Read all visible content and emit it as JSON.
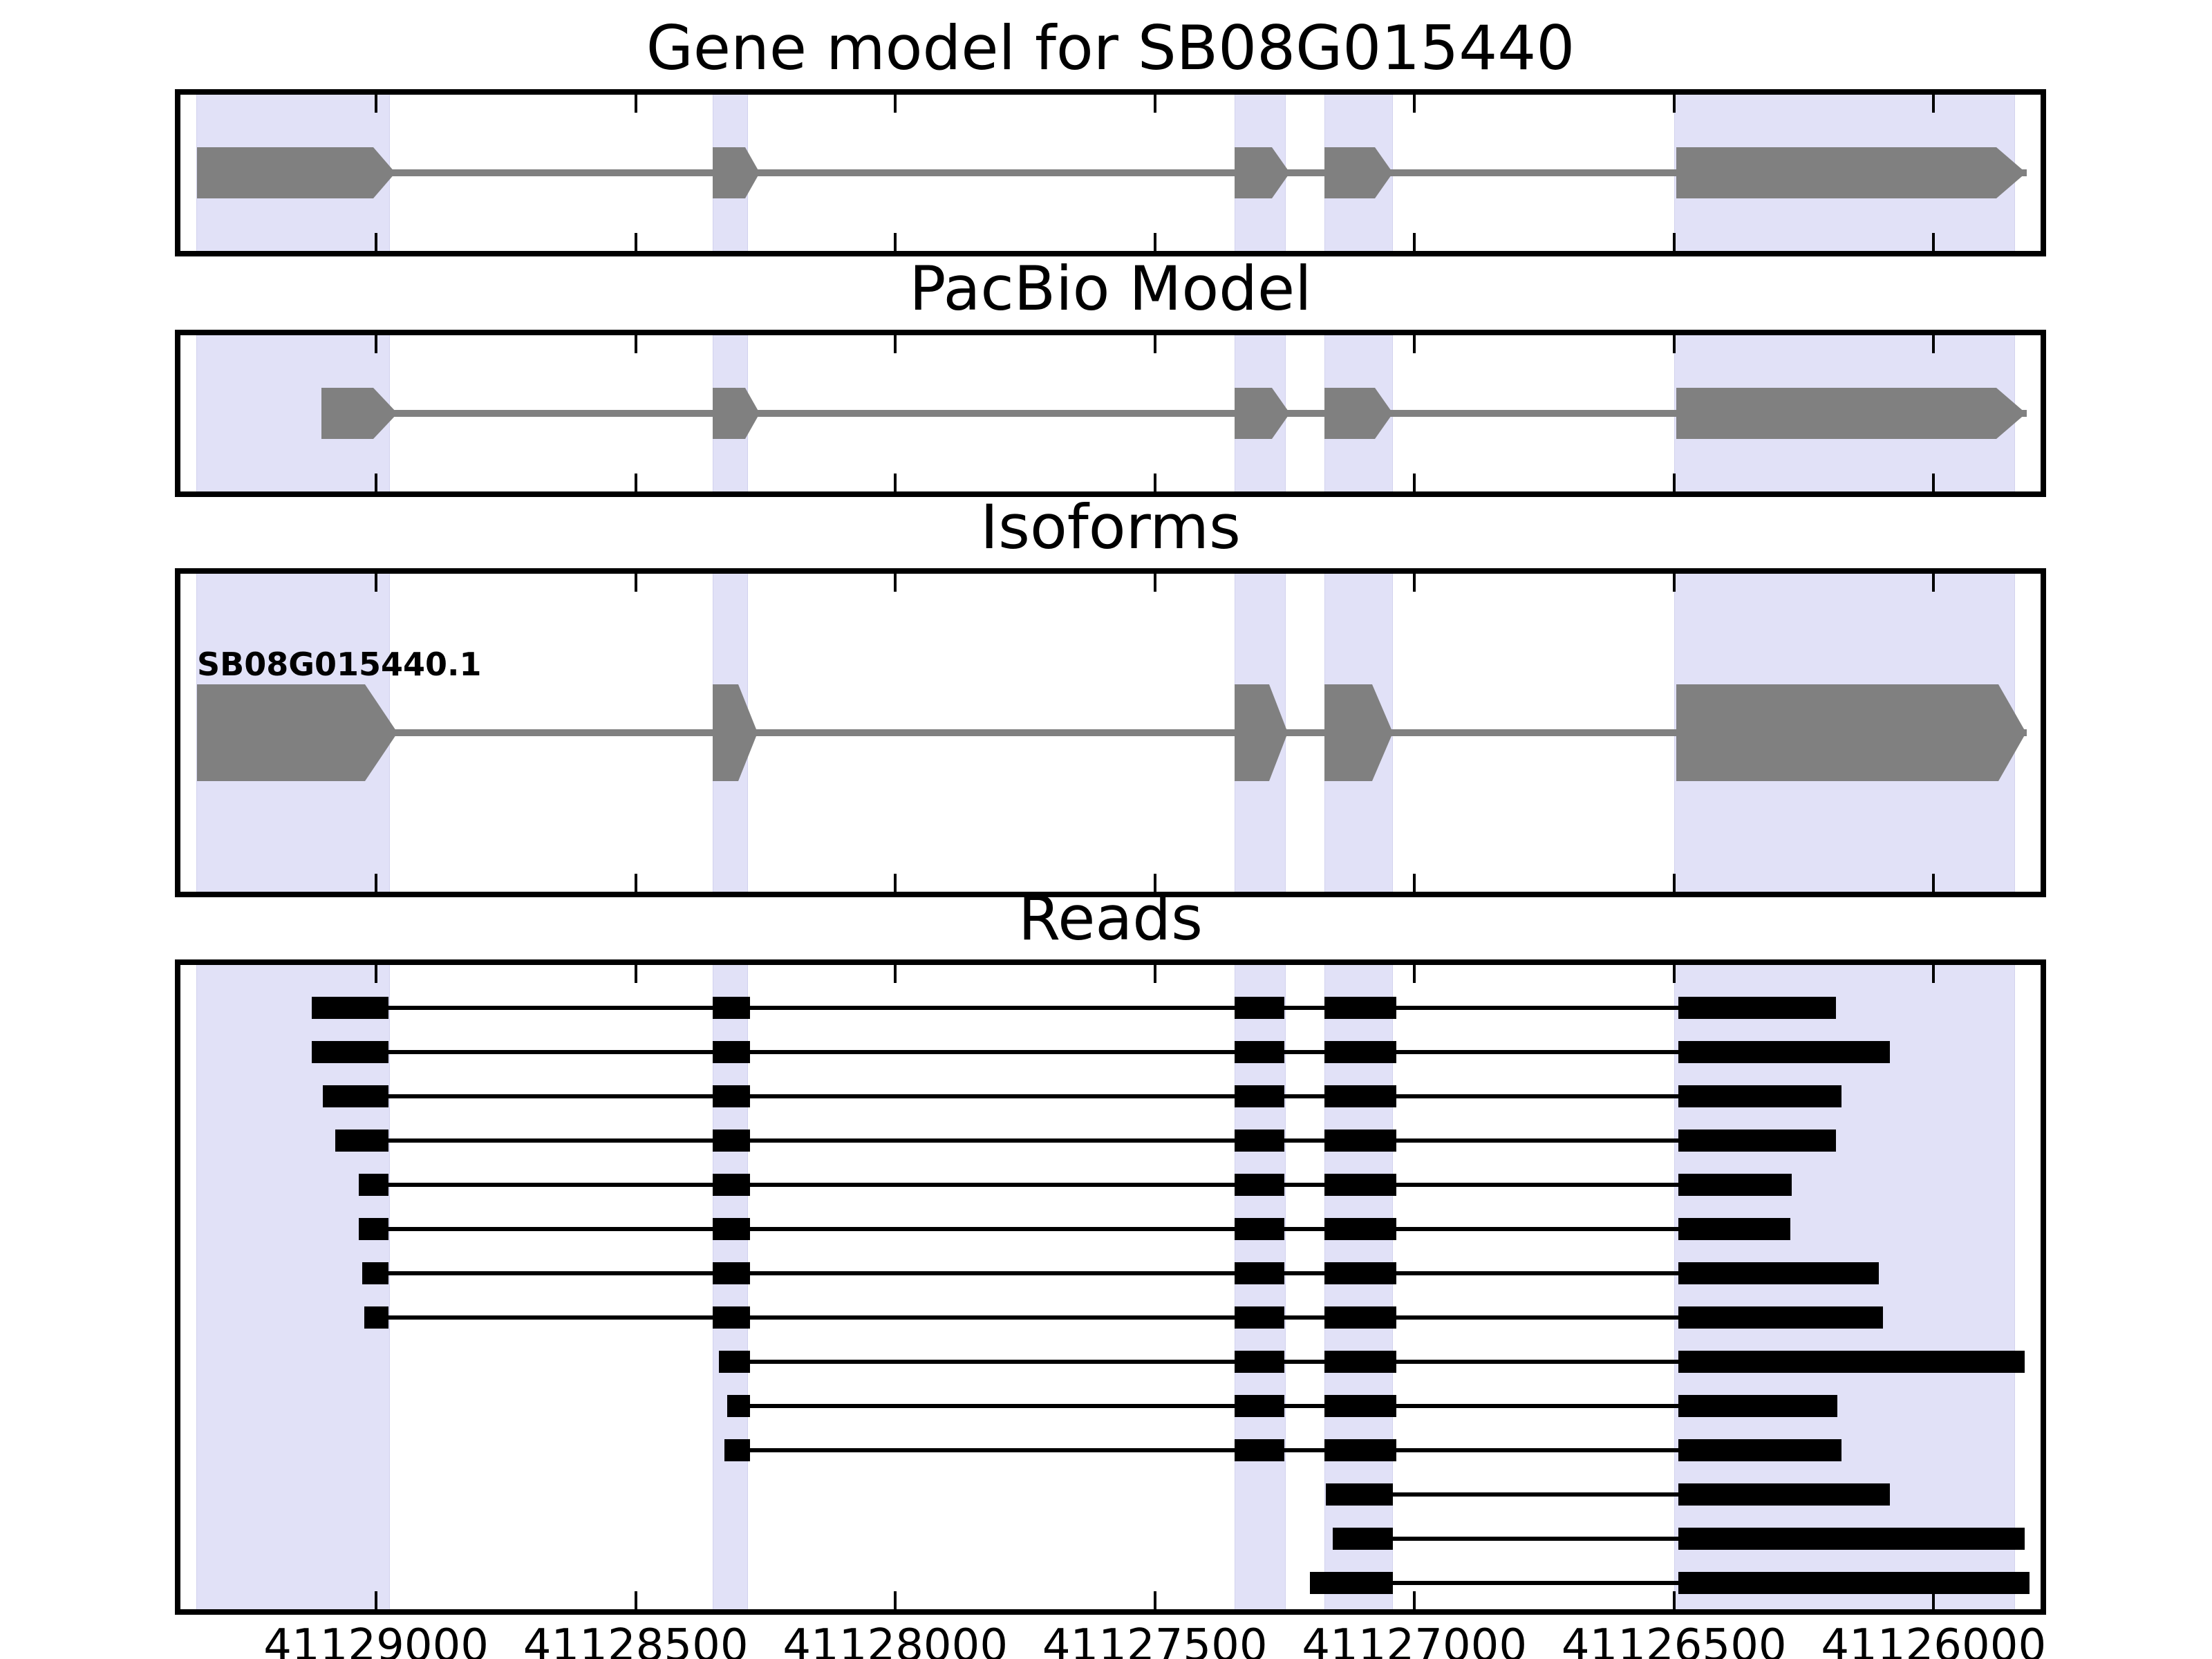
{
  "figure": {
    "background": "#ffffff"
  },
  "colors": {
    "highlight_band": "#e1e1f7",
    "gene_fill": "#808080",
    "read_fill": "#000000",
    "frame": "#000000"
  },
  "chart_data": {
    "type": "gene-model-tracks",
    "orientation": "reversed-x-axis",
    "axis": {
      "xlim_bp": [
        41129377,
        41125794
      ],
      "tick_bps": [
        41129000,
        41128500,
        41128000,
        41127500,
        41127000,
        41126500,
        41126000
      ],
      "tick_labels": [
        "41129000",
        "41128500",
        "41128000",
        "41127500",
        "41127000",
        "41126500",
        "41126000"
      ]
    },
    "highlight_regions_bp": [
      {
        "from": 41129346,
        "to": 41128976
      },
      {
        "from": 41128352,
        "to": 41128287
      },
      {
        "from": 41127347,
        "to": 41127251
      },
      {
        "from": 41127174,
        "to": 41127044
      },
      {
        "from": 41126500,
        "to": 41125846
      }
    ],
    "tracks": [
      {
        "name": "gene_model",
        "title": "Gene model for SB08G015440",
        "exons": [
          {
            "from": 41129345,
            "to": 41129006,
            "tip": 41128963
          },
          {
            "from": 41128352,
            "to": 41128289,
            "tip": 41128260
          },
          {
            "from": 41127347,
            "to": 41127275,
            "tip": 41127240
          },
          {
            "from": 41127173,
            "to": 41127076,
            "tip": 41127041
          },
          {
            "from": 41126496,
            "to": 41125879,
            "tip": 41125821
          }
        ]
      },
      {
        "name": "pacbio_model",
        "title": "PacBio Model",
        "exons": [
          {
            "from": 41129105,
            "to": 41129006,
            "tip": 41128959
          },
          {
            "from": 41128352,
            "to": 41128289,
            "tip": 41128260
          },
          {
            "from": 41127347,
            "to": 41127275,
            "tip": 41127240
          },
          {
            "from": 41127173,
            "to": 41127076,
            "tip": 41127041
          },
          {
            "from": 41126496,
            "to": 41125879,
            "tip": 41125821
          }
        ]
      },
      {
        "name": "isoforms",
        "title": "Isoforms",
        "isoform_label": "SB08G015440.1",
        "exons": [
          {
            "from": 41129345,
            "to": 41129022,
            "tip": 41128959
          },
          {
            "from": 41128352,
            "to": 41128302,
            "tip": 41128264
          },
          {
            "from": 41127347,
            "to": 41127280,
            "tip": 41127243
          },
          {
            "from": 41127173,
            "to": 41127081,
            "tip": 41127041
          },
          {
            "from": 41126496,
            "to": 41125875,
            "tip": 41125821
          }
        ]
      },
      {
        "name": "reads",
        "title": "Reads",
        "reads": [
          {
            "blocks": [
              [
                41129124,
                41128976
              ],
              [
                41128352,
                41128280
              ],
              [
                41127347,
                41127251
              ],
              [
                41127173,
                41127035
              ],
              [
                41126492,
                41126188
              ]
            ]
          },
          {
            "blocks": [
              [
                41129124,
                41128976
              ],
              [
                41128352,
                41128280
              ],
              [
                41127347,
                41127251
              ],
              [
                41127173,
                41127035
              ],
              [
                41126492,
                41126084
              ]
            ]
          },
          {
            "blocks": [
              [
                41129103,
                41128976
              ],
              [
                41128352,
                41128280
              ],
              [
                41127347,
                41127251
              ],
              [
                41127173,
                41127035
              ],
              [
                41126492,
                41126177
              ]
            ]
          },
          {
            "blocks": [
              [
                41129079,
                41128976
              ],
              [
                41128352,
                41128280
              ],
              [
                41127347,
                41127251
              ],
              [
                41127173,
                41127035
              ],
              [
                41126492,
                41126188
              ]
            ]
          },
          {
            "blocks": [
              [
                41129034,
                41128976
              ],
              [
                41128352,
                41128280
              ],
              [
                41127347,
                41127251
              ],
              [
                41127173,
                41127035
              ],
              [
                41126492,
                41126273
              ]
            ]
          },
          {
            "blocks": [
              [
                41129034,
                41128976
              ],
              [
                41128352,
                41128280
              ],
              [
                41127347,
                41127251
              ],
              [
                41127173,
                41127035
              ],
              [
                41126492,
                41126276
              ]
            ]
          },
          {
            "blocks": [
              [
                41129027,
                41128976
              ],
              [
                41128352,
                41128280
              ],
              [
                41127347,
                41127251
              ],
              [
                41127173,
                41127035
              ],
              [
                41126492,
                41126105
              ]
            ]
          },
          {
            "blocks": [
              [
                41129023,
                41128976
              ],
              [
                41128352,
                41128280
              ],
              [
                41127347,
                41127251
              ],
              [
                41127173,
                41127035
              ],
              [
                41126492,
                41126097
              ]
            ]
          },
          {
            "blocks": [
              [
                41128340,
                41128280
              ],
              [
                41127347,
                41127251
              ],
              [
                41127173,
                41127035
              ],
              [
                41126492,
                41125825
              ]
            ]
          },
          {
            "blocks": [
              [
                41128324,
                41128280
              ],
              [
                41127347,
                41127251
              ],
              [
                41127173,
                41127035
              ],
              [
                41126492,
                41126185
              ]
            ]
          },
          {
            "blocks": [
              [
                41128329,
                41128280
              ],
              [
                41127347,
                41127251
              ],
              [
                41127173,
                41127035
              ],
              [
                41126492,
                41126177
              ]
            ]
          },
          {
            "blocks": [
              [
                41127171,
                41127042
              ],
              [
                41126492,
                41126084
              ]
            ]
          },
          {
            "blocks": [
              [
                41127157,
                41127042
              ],
              [
                41126492,
                41125825
              ]
            ]
          },
          {
            "blocks": [
              [
                41127202,
                41127042
              ],
              [
                41126492,
                41125815
              ]
            ]
          }
        ]
      }
    ]
  }
}
